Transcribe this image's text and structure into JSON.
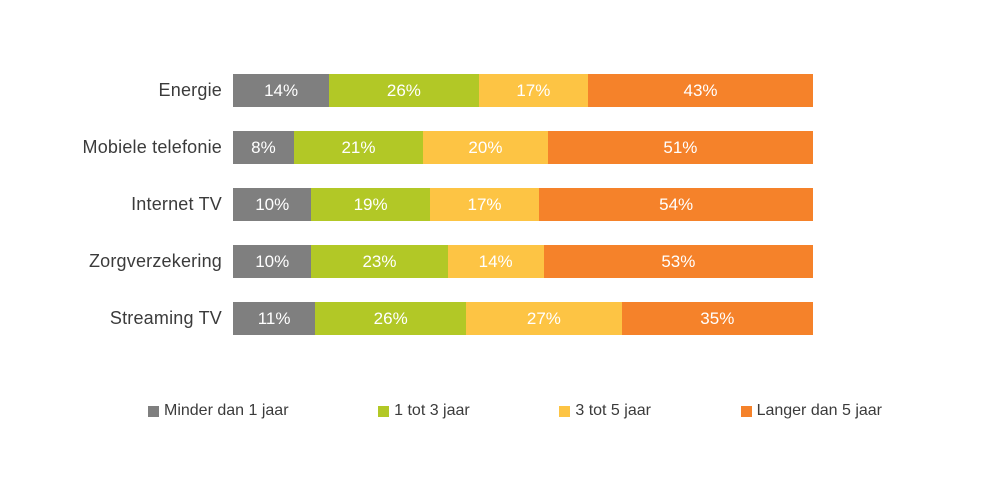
{
  "chart_data": {
    "type": "bar",
    "orientation": "horizontal",
    "stacked": true,
    "title": "",
    "categories": [
      "Energie",
      "Mobiele telefonie",
      "Internet TV",
      "Zorgverzekering",
      "Streaming TV"
    ],
    "series": [
      {
        "name": "Minder dan 1 jaar",
        "color": "#7F7F7F",
        "values": [
          14,
          8,
          10,
          10,
          11
        ]
      },
      {
        "name": "1 tot 3 jaar",
        "color": "#B2C826",
        "values": [
          26,
          21,
          19,
          23,
          26
        ]
      },
      {
        "name": "3 tot 5 jaar",
        "color": "#FDC444",
        "values": [
          17,
          20,
          17,
          14,
          27
        ]
      },
      {
        "name": "Langer dan 5 jaar",
        "color": "#F5822A",
        "values": [
          43,
          51,
          54,
          53,
          35
        ]
      }
    ],
    "value_suffix": "%",
    "value_label_color": "#FFFFFF",
    "axis_label_color": "#3B3B3B",
    "legend_position": "bottom",
    "xlim": [
      0,
      100
    ],
    "grid": false
  }
}
